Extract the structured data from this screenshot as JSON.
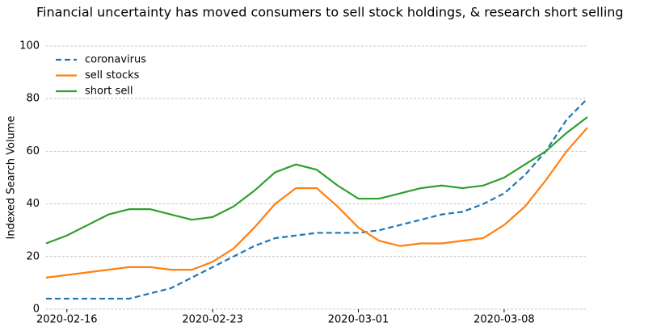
{
  "chart_data": {
    "type": "line",
    "title": "Financial uncertainty has moved consumers to sell stock holdings, & research short selling",
    "y_label": "Indexed Search Volume",
    "x": [
      "2020-02-15",
      "2020-02-16",
      "2020-02-17",
      "2020-02-18",
      "2020-02-19",
      "2020-02-20",
      "2020-02-21",
      "2020-02-22",
      "2020-02-23",
      "2020-02-24",
      "2020-02-25",
      "2020-02-26",
      "2020-02-27",
      "2020-02-28",
      "2020-02-29",
      "2020-03-01",
      "2020-03-02",
      "2020-03-03",
      "2020-03-04",
      "2020-03-05",
      "2020-03-06",
      "2020-03-07",
      "2020-03-08",
      "2020-03-09",
      "2020-03-10",
      "2020-03-11",
      "2020-03-12"
    ],
    "series": [
      {
        "name": "coronavirus",
        "color": "#1f77b4",
        "style": "dashed",
        "values": [
          4,
          4,
          4,
          4,
          4,
          6,
          8,
          12,
          16,
          20,
          24,
          27,
          28,
          29,
          29,
          29,
          30,
          32,
          34,
          36,
          37,
          40,
          44,
          51,
          60,
          72,
          80
        ]
      },
      {
        "name": "sell stocks",
        "color": "#ff7f0e",
        "style": "solid",
        "values": [
          12,
          13,
          14,
          15,
          16,
          16,
          15,
          15,
          18,
          23,
          31,
          40,
          46,
          46,
          39,
          31,
          26,
          24,
          25,
          25,
          26,
          27,
          32,
          39,
          49,
          60,
          69
        ]
      },
      {
        "name": "short sell",
        "color": "#2ca02c",
        "style": "solid",
        "values": [
          25,
          28,
          32,
          36,
          38,
          38,
          36,
          34,
          35,
          39,
          45,
          52,
          55,
          53,
          47,
          42,
          42,
          44,
          46,
          47,
          46,
          47,
          50,
          55,
          60,
          67,
          73
        ]
      }
    ],
    "xlim": [
      "2020-02-15",
      "2020-03-12"
    ],
    "xticks": [
      "2020-02-16",
      "2020-02-23",
      "2020-03-01",
      "2020-03-08"
    ],
    "ylim": [
      0,
      100
    ],
    "yticks": [
      0,
      20,
      40,
      60,
      80,
      100
    ],
    "grid": true,
    "legend_position": "upper-left"
  }
}
